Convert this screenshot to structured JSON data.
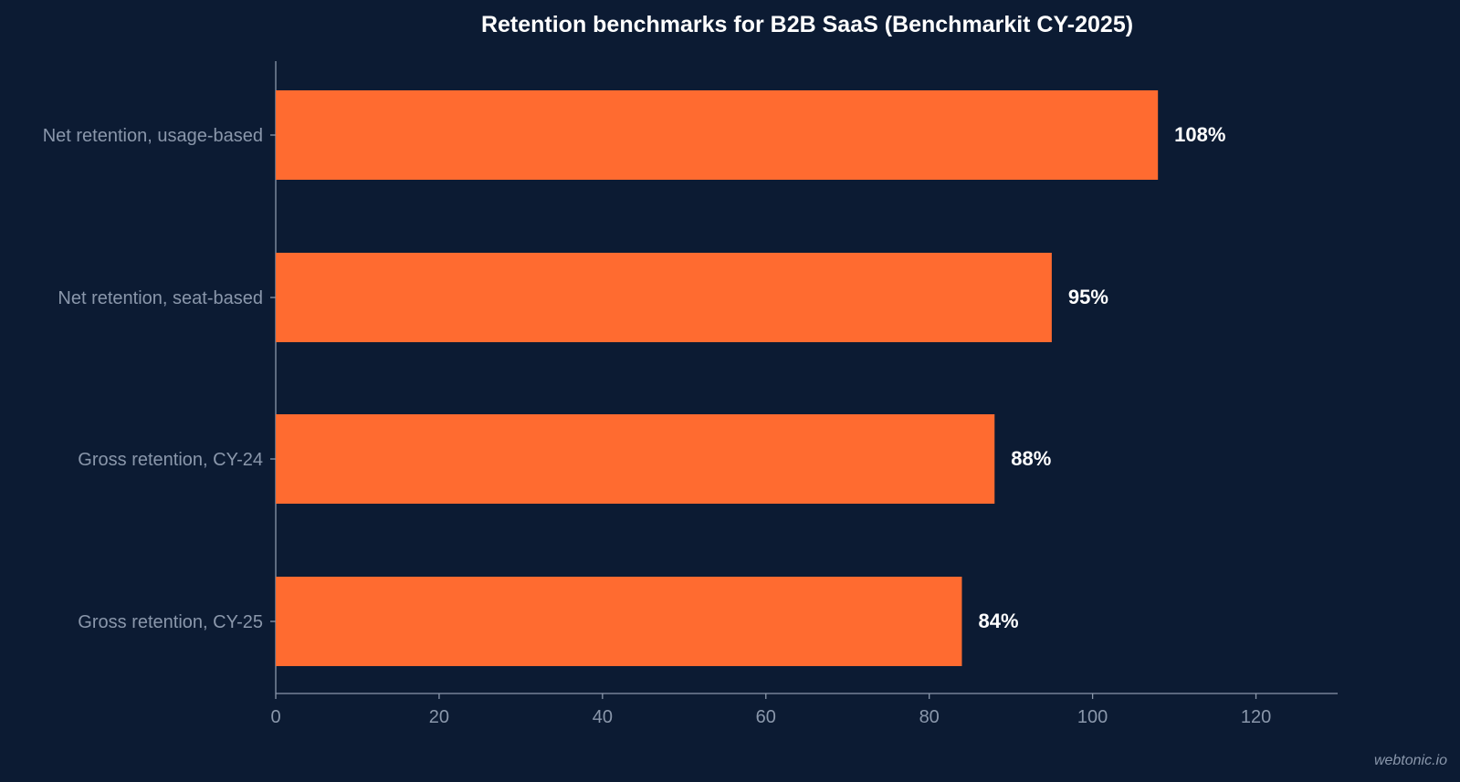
{
  "watermark": "webtonic.io",
  "chart_data": {
    "type": "bar",
    "orientation": "horizontal",
    "title": "Retention benchmarks for B2B SaaS (Benchmarkit CY-2025)",
    "xlabel": "",
    "ylabel": "",
    "categories": [
      "Net retention, usage-based",
      "Net retention, seat-based",
      "Gross retention, CY-24",
      "Gross retention, CY-25"
    ],
    "values": [
      108,
      95,
      88,
      84
    ],
    "value_labels": [
      "108%",
      "95%",
      "88%",
      "84%"
    ],
    "xlim": [
      0,
      130
    ],
    "xticks": [
      0,
      20,
      40,
      60,
      80,
      100,
      120
    ],
    "bar_color": "#ff6b30",
    "background_color": "#0c1b33",
    "grid": false
  }
}
